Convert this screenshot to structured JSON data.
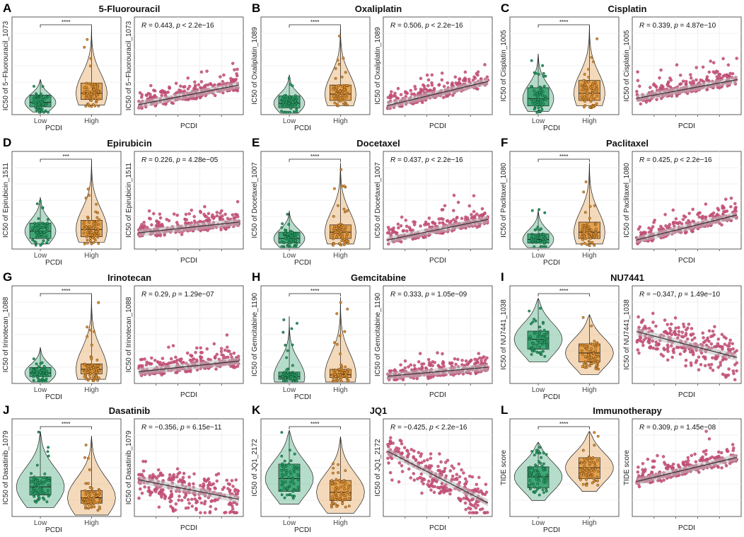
{
  "figure": {
    "group_axis_label": "PCDI",
    "scatter_axis_label": "PCDI",
    "groups": [
      "Low",
      "High"
    ],
    "colors": {
      "low_fill": "#2e9e6a",
      "low_dot": "#0f5a33",
      "high_fill": "#e0963c",
      "high_dot": "#7a4a10",
      "scatter_dot": "#c8527a",
      "trend": "#333333",
      "band": "#bdbdbd",
      "grid": "#ececec",
      "frame": "#333333"
    }
  },
  "chart_data": [
    {
      "type": "scatter",
      "id": "A",
      "title": "5-Fluorouracil",
      "ylabel": "IC50 of 5−Fluorouracil_1073",
      "xlabel": "PCDI",
      "stat": {
        "R": "0.443",
        "p": "< 2.2e−16"
      },
      "significance": "****",
      "style": "box",
      "group_values": {
        "low": {
          "median": 0.12,
          "q1": 0.07,
          "q3": 0.2,
          "max": 0.37
        },
        "high": {
          "median": 0.22,
          "q1": 0.15,
          "q3": 0.33,
          "max": 0.94
        }
      },
      "trend": {
        "start": 0.08,
        "end": 0.3
      },
      "seed": 3
    },
    {
      "type": "scatter",
      "id": "B",
      "title": "Oxaliplatin",
      "ylabel": "IC50 of Oxaliplatin_1089",
      "xlabel": "PCDI",
      "stat": {
        "R": "0.506",
        "p": "< 2.2e−16"
      },
      "significance": "****",
      "style": "box",
      "group_values": {
        "low": {
          "median": 0.11,
          "q1": 0.06,
          "q3": 0.19,
          "max": 0.42
        },
        "high": {
          "median": 0.21,
          "q1": 0.14,
          "q3": 0.31,
          "max": 0.94
        }
      },
      "trend": {
        "start": 0.07,
        "end": 0.34
      },
      "seed": 7
    },
    {
      "type": "scatter",
      "id": "C",
      "title": "Cisplatin",
      "ylabel": "IC50 of Cisplatin_1005",
      "xlabel": "PCDI",
      "stat": {
        "R": "0.339",
        "p": "4.87e−10"
      },
      "significance": "****",
      "style": "box",
      "group_values": {
        "low": {
          "median": 0.16,
          "q1": 0.08,
          "q3": 0.28,
          "max": 0.65
        },
        "high": {
          "median": 0.22,
          "q1": 0.14,
          "q3": 0.36,
          "max": 0.96
        }
      },
      "trend": {
        "start": 0.15,
        "end": 0.36
      },
      "seed": 11
    },
    {
      "type": "scatter",
      "id": "D",
      "title": "Epirubicin",
      "ylabel": "IC50 of Epirubicin_1511",
      "xlabel": "PCDI",
      "stat": {
        "R": "0.226",
        "p": "4.28e−05"
      },
      "significance": "***",
      "style": "box",
      "group_values": {
        "low": {
          "median": 0.18,
          "q1": 0.1,
          "q3": 0.27,
          "max": 0.55
        },
        "high": {
          "median": 0.2,
          "q1": 0.12,
          "q3": 0.3,
          "max": 0.95
        }
      },
      "trend": {
        "start": 0.15,
        "end": 0.27
      },
      "seed": 13
    },
    {
      "type": "scatter",
      "id": "E",
      "title": "Docetaxel",
      "ylabel": "IC50 of Docetaxel_1007",
      "xlabel": "PCDI",
      "stat": {
        "R": "0.437",
        "p": "< 2.2e−16"
      },
      "significance": "****",
      "style": "box",
      "group_values": {
        "low": {
          "median": 0.1,
          "q1": 0.05,
          "q3": 0.17,
          "max": 0.4
        },
        "high": {
          "median": 0.17,
          "q1": 0.1,
          "q3": 0.25,
          "max": 0.93
        }
      },
      "trend": {
        "start": 0.07,
        "end": 0.3
      },
      "seed": 17
    },
    {
      "type": "scatter",
      "id": "F",
      "title": "Paclitaxel",
      "ylabel": "IC50 of Paclitaxel_1080",
      "xlabel": "PCDI",
      "stat": {
        "R": "0.425",
        "p": "< 2.2e−16"
      },
      "significance": "****",
      "style": "box",
      "group_values": {
        "low": {
          "median": 0.09,
          "q1": 0.05,
          "q3": 0.15,
          "max": 0.42
        },
        "high": {
          "median": 0.17,
          "q1": 0.1,
          "q3": 0.28,
          "max": 0.93
        }
      },
      "trend": {
        "start": 0.07,
        "end": 0.35
      },
      "seed": 19
    },
    {
      "type": "scatter",
      "id": "G",
      "title": "Irinotecan",
      "ylabel": "IC50 of Irinotecan_1088",
      "xlabel": "PCDI",
      "stat": {
        "R": "0.29",
        "p": "1.29e−07"
      },
      "significance": "****",
      "style": "box",
      "group_values": {
        "low": {
          "median": 0.1,
          "q1": 0.06,
          "q3": 0.16,
          "max": 0.38
        },
        "high": {
          "median": 0.14,
          "q1": 0.09,
          "q3": 0.2,
          "max": 0.95
        }
      },
      "trend": {
        "start": 0.1,
        "end": 0.22
      },
      "seed": 23
    },
    {
      "type": "scatter",
      "id": "H",
      "title": "Gemcitabine",
      "ylabel": "IC50 of Gemcitabine_1190",
      "xlabel": "PCDI",
      "stat": {
        "R": "0.333",
        "p": "1.05e−09"
      },
      "significance": "****",
      "style": "box",
      "group_values": {
        "low": {
          "median": 0.06,
          "q1": 0.03,
          "q3": 0.11,
          "max": 0.72
        },
        "high": {
          "median": 0.08,
          "q1": 0.05,
          "q3": 0.14,
          "max": 0.93
        }
      },
      "trend": {
        "start": 0.05,
        "end": 0.15
      },
      "seed": 29
    },
    {
      "type": "scatter",
      "id": "I",
      "title": "NU7441",
      "ylabel": "IC50 of NU7441_1038",
      "xlabel": "PCDI",
      "stat": {
        "R": "−0.347",
        "p": "1.49e−10"
      },
      "significance": "****",
      "style": "violin",
      "group_values": {
        "low": {
          "median": 0.47,
          "q1": 0.36,
          "q3": 0.56,
          "max": 0.92
        },
        "high": {
          "median": 0.32,
          "q1": 0.22,
          "q3": 0.42,
          "max": 0.74
        }
      },
      "trend": {
        "start": 0.55,
        "end": 0.26
      },
      "seed": 31
    },
    {
      "type": "scatter",
      "id": "J",
      "title": "Dasatinib",
      "ylabel": "IC50 of Dasatinib_1079",
      "xlabel": "PCDI",
      "stat": {
        "R": "−0.356",
        "p": "6.15e−11"
      },
      "significance": "****",
      "style": "violin",
      "group_values": {
        "low": {
          "median": 0.31,
          "q1": 0.22,
          "q3": 0.42,
          "max": 0.92
        },
        "high": {
          "median": 0.19,
          "q1": 0.13,
          "q3": 0.27,
          "max": 0.87
        }
      },
      "trend": {
        "start": 0.38,
        "end": 0.16
      },
      "seed": 37
    },
    {
      "type": "scatter",
      "id": "K",
      "title": "JQ1",
      "ylabel": "IC50 of JQ1_2172",
      "xlabel": "PCDI",
      "stat": {
        "R": "−0.425",
        "p": "< 2.2e−16"
      },
      "significance": "****",
      "style": "violin",
      "group_values": {
        "low": {
          "median": 0.4,
          "q1": 0.26,
          "q3": 0.56,
          "max": 0.93
        },
        "high": {
          "median": 0.25,
          "q1": 0.16,
          "q3": 0.38,
          "max": 0.86
        }
      },
      "trend": {
        "start": 0.7,
        "end": 0.12
      },
      "seed": 41
    },
    {
      "type": "scatter",
      "id": "L",
      "title": "Immunotherapy",
      "ylabel": "TIDE score",
      "xlabel": "PCDI",
      "stat": {
        "R": "0.309",
        "p": "1.45e−08"
      },
      "significance": "****",
      "style": "violin",
      "group_values": {
        "low": {
          "median": 0.42,
          "q1": 0.3,
          "q3": 0.53,
          "max": 0.8
        },
        "high": {
          "median": 0.52,
          "q1": 0.4,
          "q3": 0.63,
          "max": 0.92
        }
      },
      "trend": {
        "start": 0.36,
        "end": 0.63
      },
      "seed": 43
    }
  ]
}
